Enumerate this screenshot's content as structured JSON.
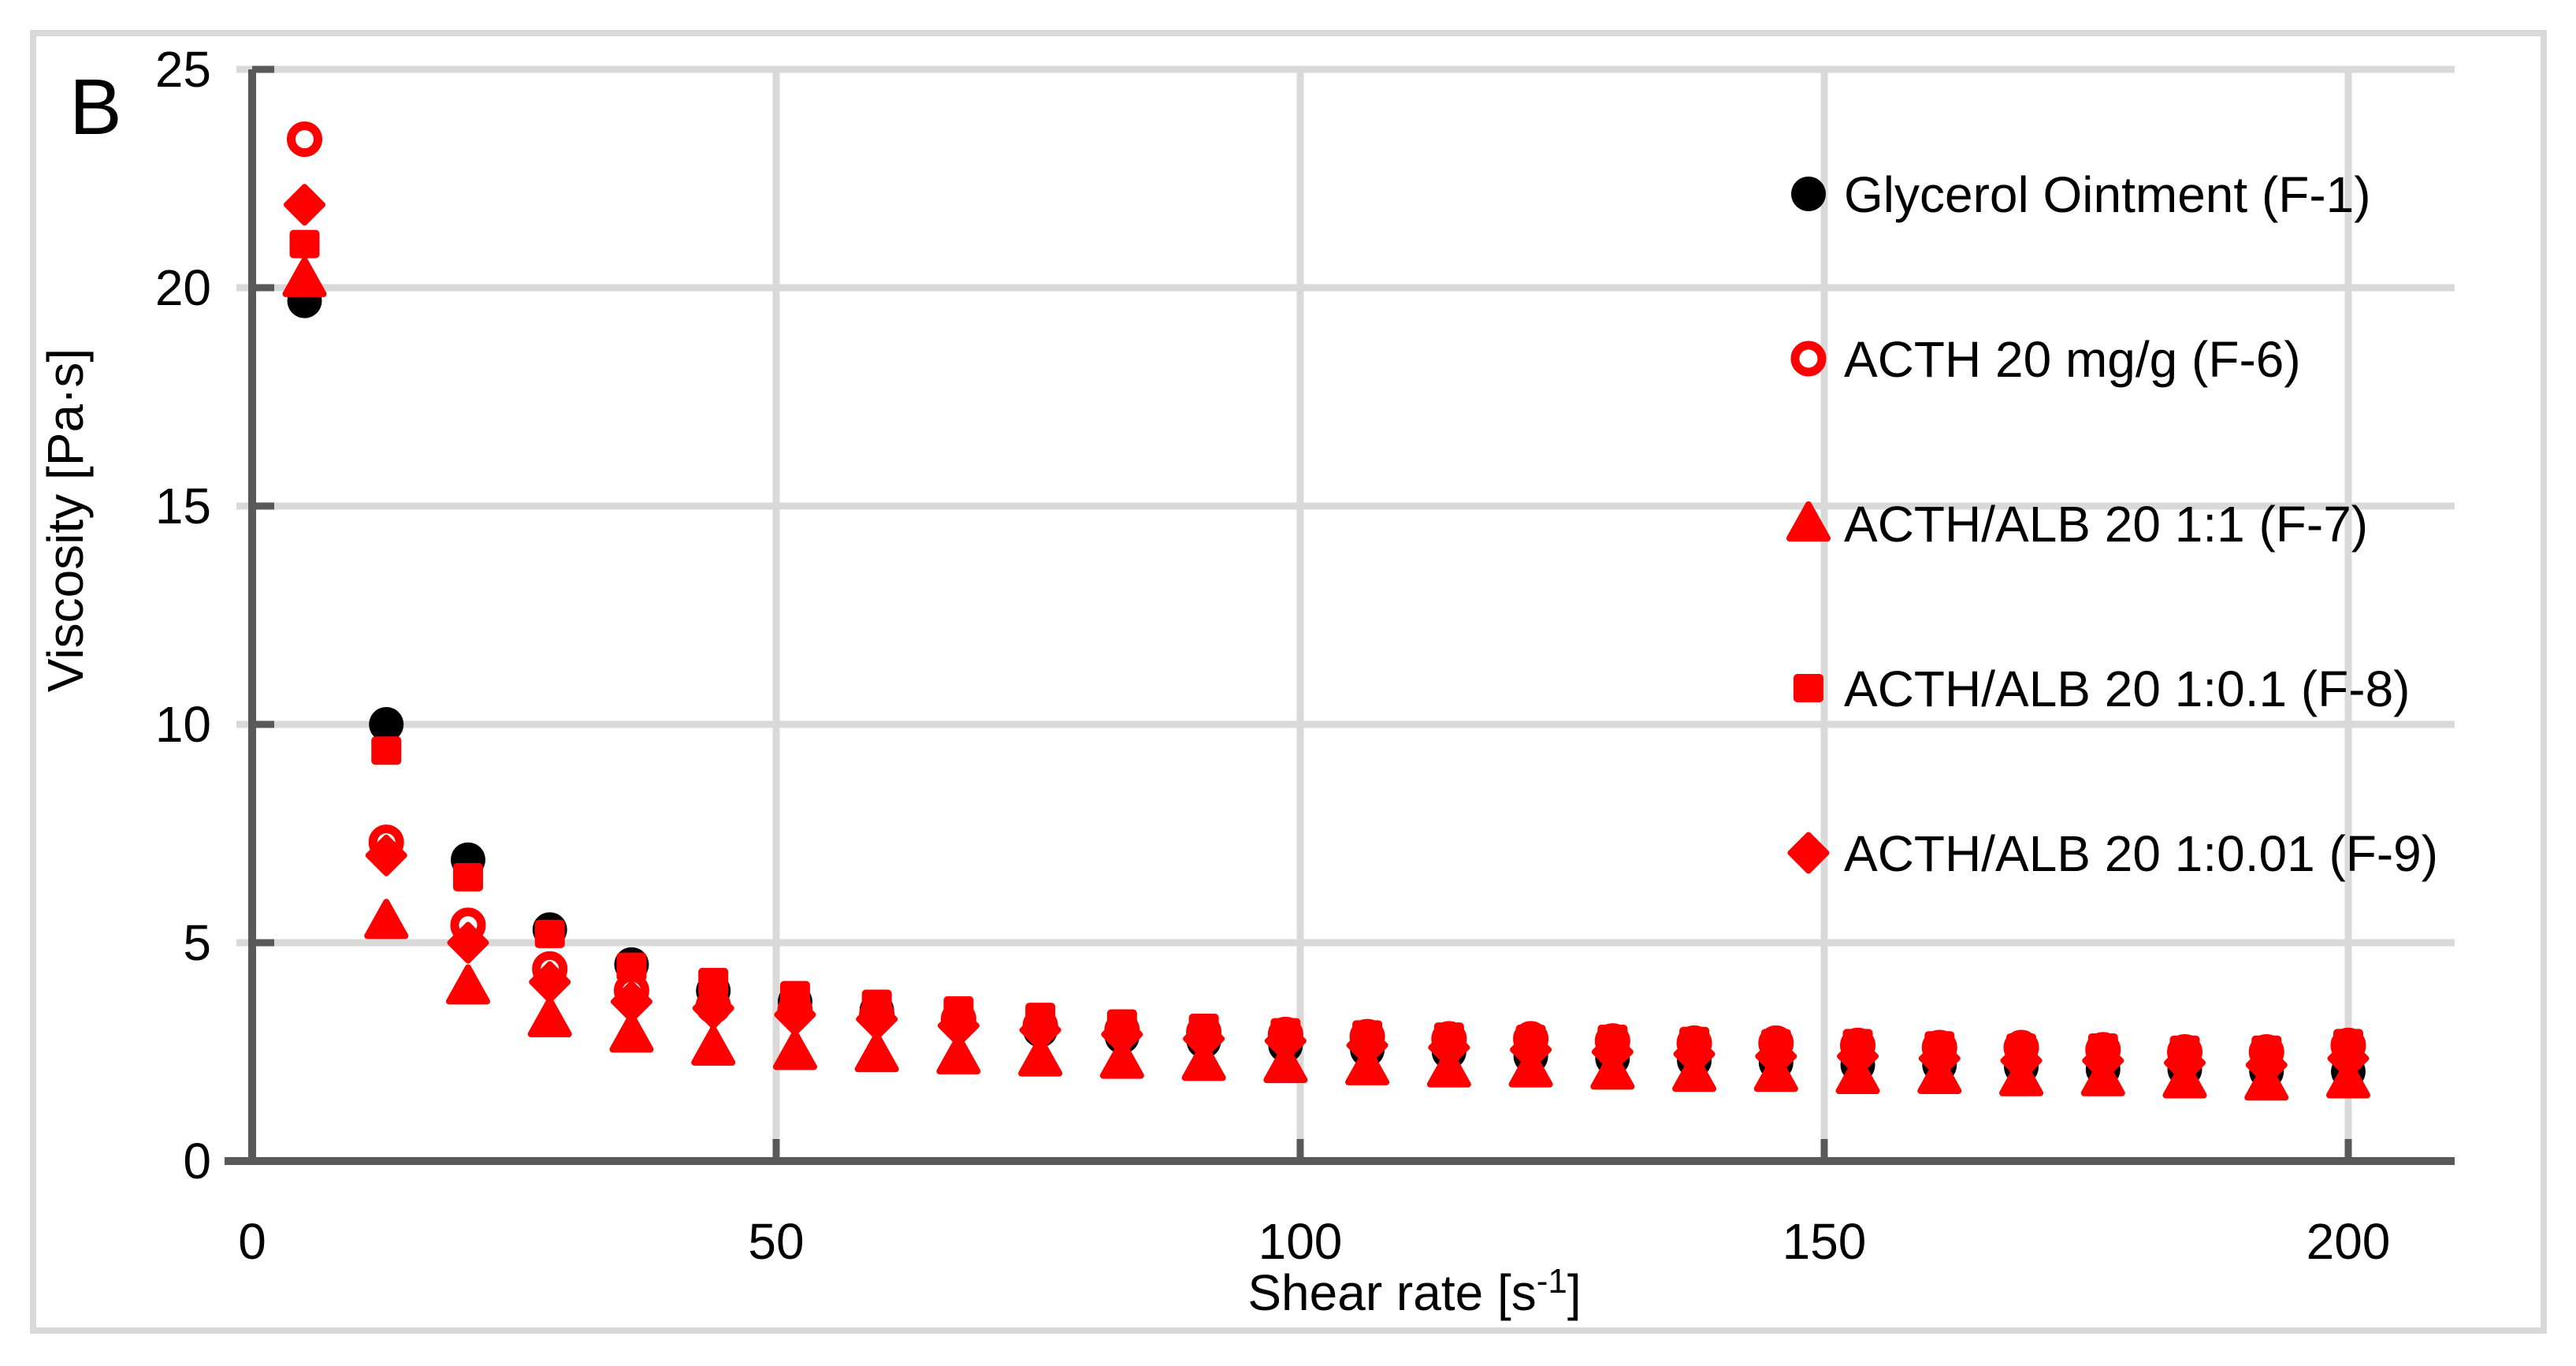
{
  "figure": {
    "panel_label": "B",
    "background_color": "#ffffff",
    "border_color": "#d9d9d9",
    "gridline_color": "#d9d9d9",
    "axis_color": "#595959",
    "accent_red": "#ff0000",
    "accent_black": "#000000"
  },
  "chart_data": {
    "type": "scatter",
    "title": "",
    "ylabel": "Viscosity [Pa·s]",
    "xlabel_parts": {
      "text_before_sup": "Shear rate [s",
      "superscript": "-1",
      "text_after_sup": "]"
    },
    "xlim": [
      0,
      210
    ],
    "ylim": [
      0,
      25
    ],
    "x_ticks": [
      0,
      50,
      100,
      150,
      200
    ],
    "y_ticks": [
      0,
      5,
      10,
      15,
      20,
      25
    ],
    "grid": "on",
    "legend_position": "top-right-inside",
    "x": [
      5,
      12.8,
      20.6,
      28.4,
      36.2,
      44,
      51.8,
      59.6,
      67.4,
      75.2,
      83,
      90.8,
      98.6,
      106.4,
      114.2,
      122,
      129.8,
      137.6,
      145.4,
      153.2,
      161,
      168.8,
      176.6,
      184.4,
      192.2,
      200
    ],
    "series": [
      {
        "name": "Glycerol Ointment (F-1)",
        "marker": "circle-filled",
        "color": "#000000",
        "values": [
          19.7,
          10.0,
          6.9,
          5.3,
          4.5,
          3.9,
          3.65,
          3.45,
          3.2,
          3.0,
          2.85,
          2.75,
          2.65,
          2.55,
          2.5,
          2.4,
          2.35,
          2.3,
          2.25,
          2.2,
          2.2,
          2.15,
          2.1,
          2.1,
          2.05,
          2.05
        ]
      },
      {
        "name": "ACTH 20 mg/g (F-6)",
        "marker": "circle-open",
        "color": "#ff0000",
        "values": [
          23.4,
          7.3,
          5.4,
          4.4,
          3.9,
          3.55,
          3.45,
          3.35,
          3.25,
          3.1,
          3.0,
          2.95,
          2.9,
          2.85,
          2.8,
          2.8,
          2.75,
          2.7,
          2.7,
          2.65,
          2.6,
          2.6,
          2.55,
          2.5,
          2.5,
          2.65
        ]
      },
      {
        "name": "ACTH/ALB 20 1:1 (F-7)",
        "marker": "triangle-filled",
        "color": "#ff0000",
        "values": [
          20.2,
          5.5,
          4.0,
          3.25,
          2.9,
          2.6,
          2.5,
          2.45,
          2.4,
          2.35,
          2.3,
          2.25,
          2.2,
          2.15,
          2.1,
          2.1,
          2.05,
          2.0,
          2.0,
          1.95,
          1.95,
          1.9,
          1.9,
          1.85,
          1.8,
          1.85
        ]
      },
      {
        "name": "ACTH/ALB 20 1:0.1 (F-8)",
        "marker": "square-filled",
        "color": "#ff0000",
        "values": [
          21.0,
          9.4,
          6.5,
          5.2,
          4.45,
          4.1,
          3.8,
          3.6,
          3.45,
          3.3,
          3.15,
          3.05,
          2.95,
          2.9,
          2.85,
          2.8,
          2.8,
          2.75,
          2.7,
          2.7,
          2.65,
          2.6,
          2.6,
          2.55,
          2.55,
          2.7
        ]
      },
      {
        "name": "ACTH/ALB 20 1:0.01 (F-9)",
        "marker": "diamond-filled",
        "color": "#ff0000",
        "values": [
          21.9,
          7.0,
          5.0,
          4.1,
          3.65,
          3.5,
          3.35,
          3.25,
          3.1,
          3.0,
          2.9,
          2.8,
          2.75,
          2.65,
          2.6,
          2.55,
          2.5,
          2.45,
          2.4,
          2.4,
          2.35,
          2.3,
          2.3,
          2.25,
          2.2,
          2.35
        ]
      }
    ]
  },
  "legend": {
    "entries": [
      "Glycerol Ointment (F-1)",
      "ACTH 20 mg/g (F-6)",
      "ACTH/ALB 20 1:1 (F-7)",
      "ACTH/ALB 20 1:0.1 (F-8)",
      "ACTH/ALB 20 1:0.01 (F-9)"
    ]
  }
}
